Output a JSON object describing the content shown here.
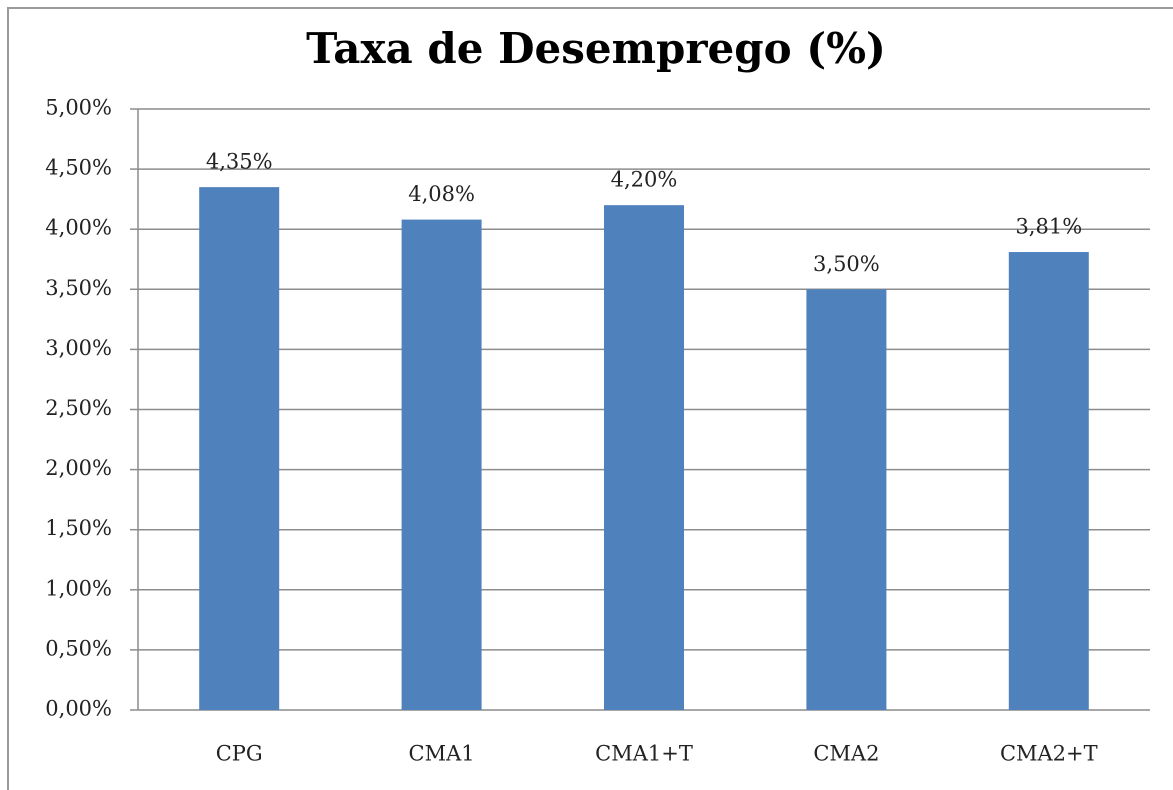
{
  "chart_data": {
    "type": "bar",
    "title": "Taxa de Desemprego (%)",
    "categories": [
      "CPG",
      "CMA1",
      "CMA1+T",
      "CMA2",
      "CMA2+T"
    ],
    "values": [
      4.35,
      4.08,
      4.2,
      3.5,
      3.81
    ],
    "value_labels": [
      "4,35%",
      "4,08%",
      "4,20%",
      "3,50%",
      "3,81%"
    ],
    "color": "#4f81bd",
    "ylim": [
      0,
      5
    ],
    "yticks": [
      {
        "value": 0,
        "label": "0,00%"
      },
      {
        "value": 0.5,
        "label": "0,50%"
      },
      {
        "value": 1,
        "label": "1,00%"
      },
      {
        "value": 1.5,
        "label": "1,50%"
      },
      {
        "value": 2,
        "label": "2,00%"
      },
      {
        "value": 2.5,
        "label": "2,50%"
      },
      {
        "value": 3,
        "label": "3,00%"
      },
      {
        "value": 3.5,
        "label": "3,50%"
      },
      {
        "value": 4,
        "label": "4,00%"
      },
      {
        "value": 4.5,
        "label": "4,50%"
      },
      {
        "value": 5,
        "label": "5,00%"
      }
    ],
    "grid": true
  }
}
